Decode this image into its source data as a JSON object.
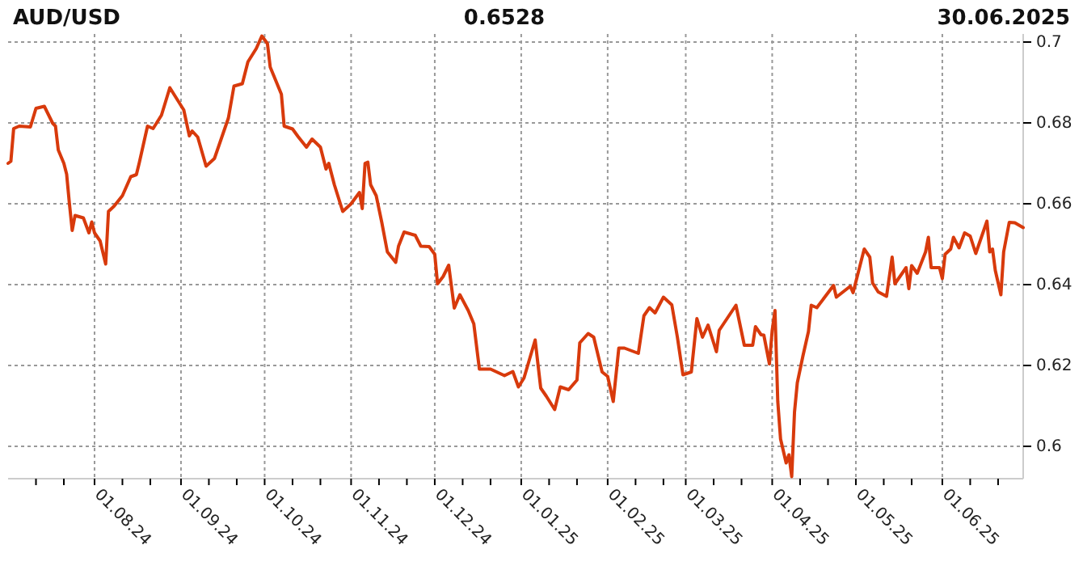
{
  "chart_data": {
    "type": "line",
    "title": "AUD/USD",
    "subtitle": "0.6528",
    "annotations": [
      "30.06.2025"
    ],
    "x": [
      "2024-07-01",
      "2024-07-02",
      "2024-07-03",
      "2024-07-05",
      "2024-07-09",
      "2024-07-11",
      "2024-07-14",
      "2024-07-17",
      "2024-07-18",
      "2024-07-19",
      "2024-07-21",
      "2024-07-22",
      "2024-07-23",
      "2024-07-24",
      "2024-07-25",
      "2024-07-28",
      "2024-07-30",
      "2024-07-31",
      "2024-08-01",
      "2024-08-03",
      "2024-08-05",
      "2024-08-06",
      "2024-08-08",
      "2024-08-11",
      "2024-08-14",
      "2024-08-16",
      "2024-08-17",
      "2024-08-20",
      "2024-08-22",
      "2024-08-25",
      "2024-08-28",
      "2024-08-30",
      "2024-09-02",
      "2024-09-04",
      "2024-09-05",
      "2024-09-07",
      "2024-09-10",
      "2024-09-13",
      "2024-09-18",
      "2024-09-20",
      "2024-09-23",
      "2024-09-25",
      "2024-09-28",
      "2024-09-30",
      "2024-10-02",
      "2024-10-03",
      "2024-10-07",
      "2024-10-08",
      "2024-10-11",
      "2024-10-13",
      "2024-10-16",
      "2024-10-18",
      "2024-10-21",
      "2024-10-23",
      "2024-10-24",
      "2024-10-26",
      "2024-10-29",
      "2024-11-01",
      "2024-11-04",
      "2024-11-05",
      "2024-11-06",
      "2024-11-07",
      "2024-11-08",
      "2024-11-10",
      "2024-11-12",
      "2024-11-14",
      "2024-11-17",
      "2024-11-18",
      "2024-11-20",
      "2024-11-24",
      "2024-11-26",
      "2024-11-29",
      "2024-12-01",
      "2024-12-02",
      "2024-12-04",
      "2024-12-06",
      "2024-12-08",
      "2024-12-10",
      "2024-12-13",
      "2024-12-15",
      "2024-12-17",
      "2024-12-21",
      "2024-12-26",
      "2024-12-29",
      "2024-12-31",
      "2025-01-02",
      "2025-01-06",
      "2025-01-08",
      "2025-01-10",
      "2025-01-13",
      "2025-01-15",
      "2025-01-18",
      "2025-01-21",
      "2025-01-22",
      "2025-01-25",
      "2025-01-27",
      "2025-01-30",
      "2025-02-01",
      "2025-02-03",
      "2025-02-05",
      "2025-02-07",
      "2025-02-12",
      "2025-02-14",
      "2025-02-16",
      "2025-02-18",
      "2025-02-21",
      "2025-02-24",
      "2025-02-26",
      "2025-02-28",
      "2025-03-03",
      "2025-03-05",
      "2025-03-07",
      "2025-03-09",
      "2025-03-12",
      "2025-03-13",
      "2025-03-19",
      "2025-03-22",
      "2025-03-25",
      "2025-03-26",
      "2025-03-28",
      "2025-03-29",
      "2025-03-31",
      "2025-04-01",
      "2025-04-02",
      "2025-04-03",
      "2025-04-04",
      "2025-04-06",
      "2025-04-07",
      "2025-04-08",
      "2025-04-09",
      "2025-04-10",
      "2025-04-12",
      "2025-04-14",
      "2025-04-15",
      "2025-04-17",
      "2025-04-23",
      "2025-04-24",
      "2025-04-29",
      "2025-04-30",
      "2025-05-04",
      "2025-05-06",
      "2025-05-07",
      "2025-05-09",
      "2025-05-12",
      "2025-05-14",
      "2025-05-15",
      "2025-05-19",
      "2025-05-20",
      "2025-05-21",
      "2025-05-23",
      "2025-05-26",
      "2025-05-27",
      "2025-05-28",
      "2025-05-31",
      "2025-06-01",
      "2025-06-02",
      "2025-06-04",
      "2025-06-05",
      "2025-06-07",
      "2025-06-09",
      "2025-06-11",
      "2025-06-13",
      "2025-06-17",
      "2025-06-18",
      "2025-06-19",
      "2025-06-20",
      "2025-06-22",
      "2025-06-23",
      "2025-06-25",
      "2025-06-27",
      "2025-06-30"
    ],
    "series": [
      {
        "color": "#d83a0c",
        "values": [
          0.67,
          0.6705,
          0.6786,
          0.6792,
          0.679,
          0.6836,
          0.6841,
          0.6799,
          0.6792,
          0.6733,
          0.67,
          0.6673,
          0.66,
          0.6534,
          0.6571,
          0.6565,
          0.6528,
          0.6555,
          0.6528,
          0.6508,
          0.6451,
          0.6581,
          0.6594,
          0.662,
          0.6667,
          0.6672,
          0.67,
          0.6792,
          0.6786,
          0.6819,
          0.6887,
          0.6865,
          0.6832,
          0.6768,
          0.678,
          0.6765,
          0.6693,
          0.6712,
          0.6812,
          0.6891,
          0.6897,
          0.6951,
          0.6984,
          0.7015,
          0.6996,
          0.6938,
          0.6871,
          0.6792,
          0.6785,
          0.6766,
          0.674,
          0.676,
          0.674,
          0.6686,
          0.67,
          0.6647,
          0.6581,
          0.66,
          0.6628,
          0.6588,
          0.67,
          0.6703,
          0.6647,
          0.662,
          0.6554,
          0.6481,
          0.6455,
          0.6495,
          0.653,
          0.6522,
          0.6495,
          0.6494,
          0.6475,
          0.6402,
          0.642,
          0.6448,
          0.6342,
          0.6375,
          0.6336,
          0.6303,
          0.6191,
          0.6191,
          0.6175,
          0.6185,
          0.6147,
          0.6169,
          0.6263,
          0.6144,
          0.6124,
          0.6091,
          0.6147,
          0.614,
          0.6164,
          0.6256,
          0.6279,
          0.627,
          0.6184,
          0.6173,
          0.6111,
          0.6243,
          0.6243,
          0.623,
          0.6323,
          0.6343,
          0.633,
          0.6369,
          0.635,
          0.627,
          0.6177,
          0.6184,
          0.6316,
          0.627,
          0.63,
          0.6234,
          0.6287,
          0.6349,
          0.625,
          0.625,
          0.6296,
          0.6276,
          0.6275,
          0.6204,
          0.6287,
          0.6336,
          0.6111,
          0.6018,
          0.5959,
          0.5979,
          0.5925,
          0.6085,
          0.6157,
          0.6223,
          0.6284,
          0.6349,
          0.6343,
          0.6398,
          0.6369,
          0.6396,
          0.638,
          0.6488,
          0.6468,
          0.6404,
          0.6382,
          0.6371,
          0.6468,
          0.6402,
          0.6442,
          0.639,
          0.6447,
          0.6428,
          0.6481,
          0.6517,
          0.6442,
          0.6442,
          0.6415,
          0.6475,
          0.6488,
          0.6517,
          0.6491,
          0.6528,
          0.652,
          0.6477,
          0.6557,
          0.6481,
          0.6488,
          0.6435,
          0.6375,
          0.6481,
          0.6554,
          0.6553,
          0.6541
        ]
      }
    ],
    "xlim": [
      "2024-07-01",
      "2025-06-30"
    ],
    "xticks": [
      {
        "value": "2024-07-11",
        "label": null
      },
      {
        "value": "2024-07-21",
        "label": null
      },
      {
        "value": "2024-08-01",
        "label": "01.08.24"
      },
      {
        "value": "2024-08-11",
        "label": null
      },
      {
        "value": "2024-08-21",
        "label": null
      },
      {
        "value": "2024-09-01",
        "label": "01.09.24"
      },
      {
        "value": "2024-09-11",
        "label": null
      },
      {
        "value": "2024-09-21",
        "label": null
      },
      {
        "value": "2024-10-01",
        "label": "01.10.24"
      },
      {
        "value": "2024-10-11",
        "label": null
      },
      {
        "value": "2024-10-21",
        "label": null
      },
      {
        "value": "2024-11-01",
        "label": "01.11.24"
      },
      {
        "value": "2024-11-11",
        "label": null
      },
      {
        "value": "2024-11-21",
        "label": null
      },
      {
        "value": "2024-12-01",
        "label": "01.12.24"
      },
      {
        "value": "2024-12-11",
        "label": null
      },
      {
        "value": "2024-12-21",
        "label": null
      },
      {
        "value": "2025-01-01",
        "label": "01.01.25"
      },
      {
        "value": "2025-01-11",
        "label": null
      },
      {
        "value": "2025-01-21",
        "label": null
      },
      {
        "value": "2025-02-01",
        "label": "01.02.25"
      },
      {
        "value": "2025-02-11",
        "label": null
      },
      {
        "value": "2025-02-21",
        "label": null
      },
      {
        "value": "2025-03-01",
        "label": "01.03.25"
      },
      {
        "value": "2025-03-11",
        "label": null
      },
      {
        "value": "2025-03-21",
        "label": null
      },
      {
        "value": "2025-04-01",
        "label": "01.04.25"
      },
      {
        "value": "2025-04-11",
        "label": null
      },
      {
        "value": "2025-04-21",
        "label": null
      },
      {
        "value": "2025-05-01",
        "label": "01.05.25"
      },
      {
        "value": "2025-05-11",
        "label": null
      },
      {
        "value": "2025-05-21",
        "label": null
      },
      {
        "value": "2025-06-01",
        "label": "01.06.25"
      },
      {
        "value": "2025-06-11",
        "label": null
      },
      {
        "value": "2025-06-21",
        "label": null
      }
    ],
    "ylim": [
      0.592,
      0.702
    ],
    "yticks": [
      0.6,
      0.62,
      0.64,
      0.66,
      0.68,
      0.7
    ],
    "grid": true,
    "line_style": "solid"
  }
}
